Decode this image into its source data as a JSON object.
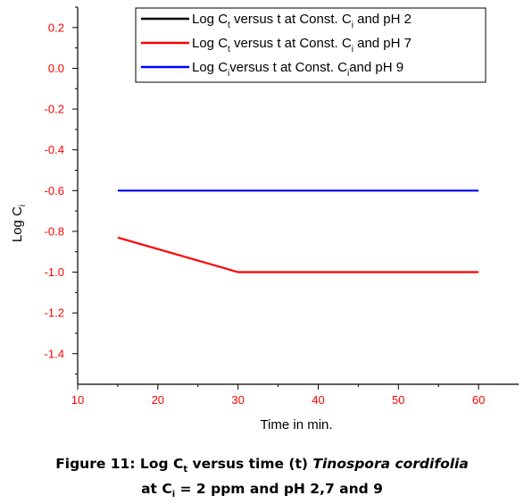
{
  "chart_data": {
    "type": "line",
    "x_axis": {
      "label": "Time in min.",
      "range": [
        10,
        65
      ],
      "ticks": [
        10,
        20,
        30,
        40,
        50,
        60
      ],
      "tick_labels": [
        "10",
        "20",
        "30",
        "40",
        "50",
        "60"
      ],
      "tick_color": "#ff0000"
    },
    "y_axis": {
      "label": "Log C",
      "label_subscript": "i",
      "range": [
        -1.55,
        0.3
      ],
      "ticks": [
        0.2,
        0.0,
        -0.2,
        -0.4,
        -0.6,
        -0.8,
        -1.0,
        -1.2,
        -1.4
      ],
      "tick_labels": [
        "0.2",
        "0.0",
        "-0.2",
        "-0.4",
        "-0.6",
        "-0.8",
        "-1.0",
        "-1.2",
        "-1.4"
      ],
      "tick_color": "#ff0000"
    },
    "grid": false,
    "legend_position": "top-right",
    "series": [
      {
        "legend_parts": [
          "Log C",
          "t",
          " versus t at Const. C",
          "i",
          " and pH 2"
        ],
        "color": "#000000",
        "x": [],
        "y": []
      },
      {
        "legend_parts": [
          "Log C",
          "t",
          " versus t at Const. C",
          "i",
          " and pH 7"
        ],
        "color": "#ff0000",
        "x": [
          15,
          30,
          60
        ],
        "y": [
          -0.83,
          -1.0,
          -1.0
        ]
      },
      {
        "legend_parts": [
          "Log C",
          "i",
          "versus t at Const. C",
          "i",
          "and pH 9"
        ],
        "color": "#0000ff",
        "x": [
          15,
          30,
          60
        ],
        "y": [
          -0.6,
          -0.6,
          -0.6
        ]
      }
    ]
  },
  "caption": {
    "line1_prefix": "Figure 11: Log C",
    "line1_sub": "t",
    "line1_middle": " versus time (t) ",
    "line1_italic": "Tinospora cordifolia",
    "line2_prefix": "at C",
    "line2_sub": "i",
    "line2_suffix": " = 2 ppm and pH 2,7 and 9"
  }
}
